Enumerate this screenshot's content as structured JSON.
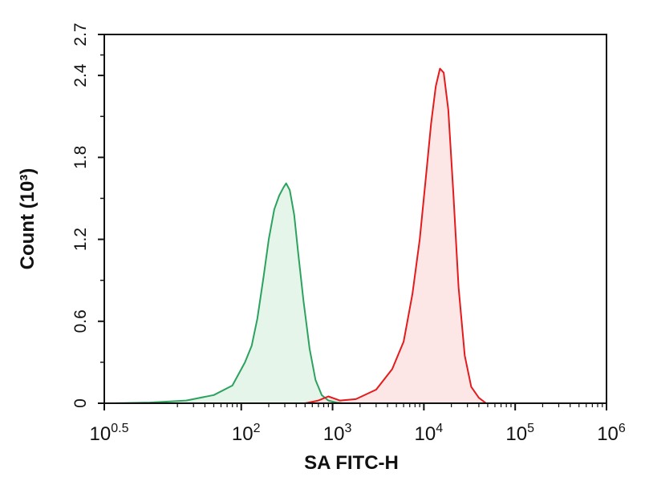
{
  "chart_data": {
    "type": "area",
    "xlabel": "SA FITC-H",
    "ylabel": "Count (10³)",
    "x_scale": "log10",
    "xlim": [
      3.1623,
      1000000
    ],
    "ylim": [
      0,
      2.7
    ],
    "x_ticks": [
      {
        "value": 3.1623,
        "base": "10",
        "exp": "0.5"
      },
      {
        "value": 100,
        "base": "10",
        "exp": "2"
      },
      {
        "value": 1000,
        "base": "10",
        "exp": "3"
      },
      {
        "value": 10000,
        "base": "10",
        "exp": "4"
      },
      {
        "value": 100000,
        "base": "10",
        "exp": "5"
      },
      {
        "value": 1000000,
        "base": "10",
        "exp": "6"
      }
    ],
    "y_ticks": [
      "0",
      "0.6",
      "1.2",
      "1.8",
      "2.4",
      "2.7"
    ],
    "grid": false,
    "series": [
      {
        "color": "#2ca25f",
        "fill": "#e5f5ea",
        "points": [
          [
            4,
            0
          ],
          [
            10,
            0.005
          ],
          [
            25,
            0.02
          ],
          [
            50,
            0.06
          ],
          [
            80,
            0.13
          ],
          [
            110,
            0.3
          ],
          [
            130,
            0.42
          ],
          [
            150,
            0.62
          ],
          [
            175,
            0.92
          ],
          [
            200,
            1.2
          ],
          [
            230,
            1.42
          ],
          [
            260,
            1.52
          ],
          [
            290,
            1.58
          ],
          [
            310,
            1.61
          ],
          [
            340,
            1.56
          ],
          [
            380,
            1.38
          ],
          [
            420,
            1.1
          ],
          [
            480,
            0.75
          ],
          [
            560,
            0.4
          ],
          [
            650,
            0.17
          ],
          [
            760,
            0.06
          ],
          [
            900,
            0.02
          ],
          [
            1100,
            0.005
          ],
          [
            1300,
            0
          ]
        ]
      },
      {
        "color": "#e41a1c",
        "fill": "#fde6e6",
        "points": [
          [
            500,
            0
          ],
          [
            700,
            0.02
          ],
          [
            900,
            0.05
          ],
          [
            1200,
            0.02
          ],
          [
            1800,
            0.03
          ],
          [
            3000,
            0.1
          ],
          [
            4500,
            0.25
          ],
          [
            6000,
            0.45
          ],
          [
            7500,
            0.8
          ],
          [
            9000,
            1.2
          ],
          [
            10500,
            1.65
          ],
          [
            12000,
            2.05
          ],
          [
            13500,
            2.32
          ],
          [
            15000,
            2.45
          ],
          [
            16500,
            2.42
          ],
          [
            18500,
            2.15
          ],
          [
            21000,
            1.55
          ],
          [
            24000,
            0.85
          ],
          [
            28000,
            0.35
          ],
          [
            33000,
            0.12
          ],
          [
            40000,
            0.04
          ],
          [
            48000,
            0
          ]
        ]
      }
    ]
  }
}
